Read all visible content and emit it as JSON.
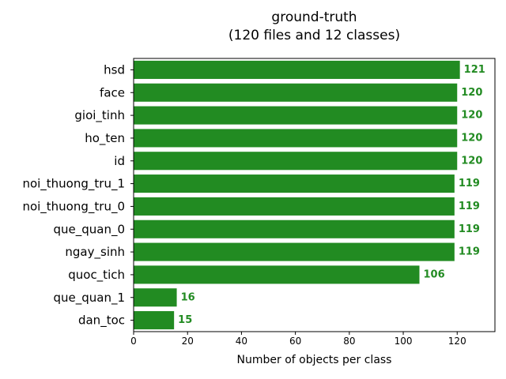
{
  "chart_data": {
    "type": "bar",
    "orientation": "horizontal",
    "title": "ground-truth",
    "subtitle": "(120 files and 12 classes)",
    "xlabel": "Number of objects per class",
    "ylabel": "",
    "categories": [
      "hsd",
      "face",
      "gioi_tinh",
      "ho_ten",
      "id",
      "noi_thuong_tru_1",
      "noi_thuong_tru_0",
      "que_quan_0",
      "ngay_sinh",
      "quoc_tich",
      "que_quan_1",
      "dan_toc"
    ],
    "values": [
      121,
      120,
      120,
      120,
      120,
      119,
      119,
      119,
      119,
      106,
      16,
      15
    ],
    "data_labels": [
      "121",
      "120",
      "120",
      "120",
      "120",
      "119",
      "119",
      "119",
      "119",
      "106",
      "16",
      "15"
    ],
    "xlim": [
      0,
      134
    ],
    "xticks": [
      0,
      20,
      40,
      60,
      80,
      100,
      120
    ],
    "bar_color": "#228b22",
    "label_color": "#228b22",
    "grid": false,
    "legend": "none"
  }
}
